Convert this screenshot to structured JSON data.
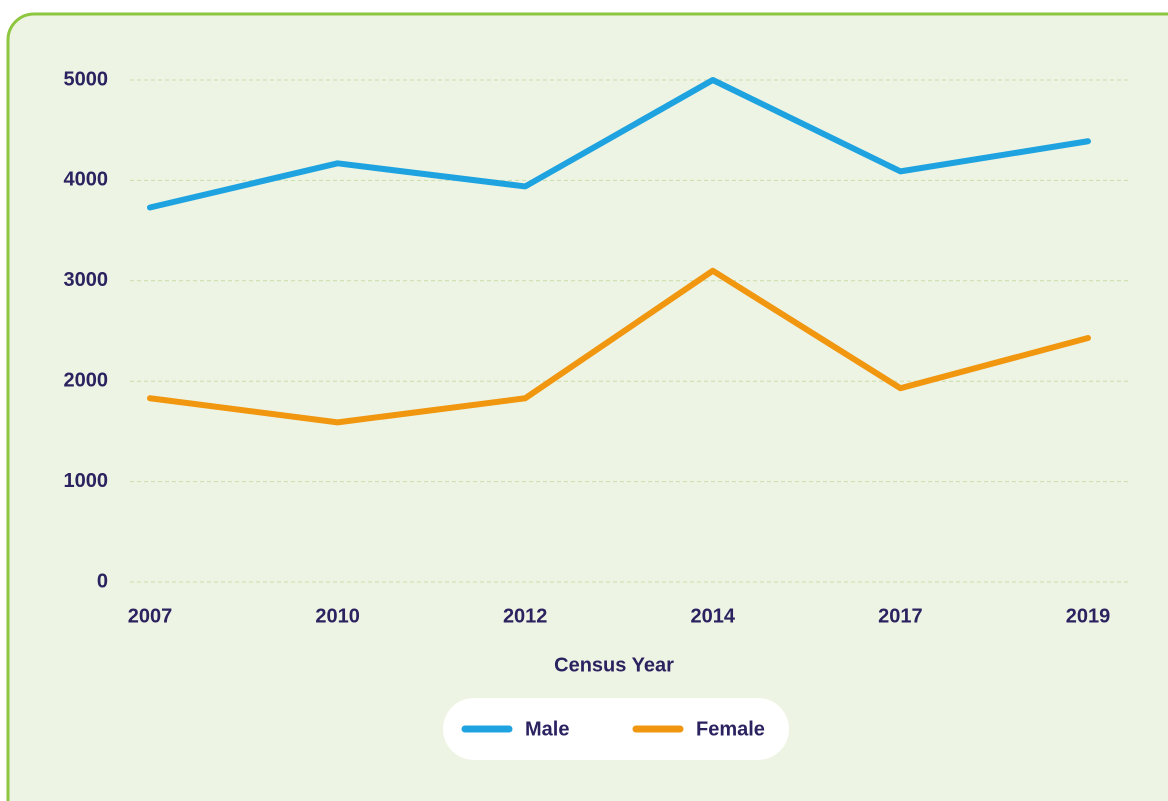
{
  "chart_data": {
    "type": "line",
    "categories": [
      "2007",
      "2010",
      "2012",
      "2014",
      "2017",
      "2019"
    ],
    "x_label": "Census Year",
    "series": [
      {
        "name": "Male",
        "color": "#1ea3e0",
        "values": [
          3730,
          4170,
          3940,
          5000,
          4090,
          4390
        ]
      },
      {
        "name": "Female",
        "color": "#f0960f",
        "values": [
          1830,
          1590,
          1830,
          3100,
          1930,
          2430
        ]
      }
    ],
    "ylim": [
      0,
      5000
    ],
    "yticks": [
      0,
      1000,
      2000,
      3000,
      4000,
      5000
    ],
    "grid": true
  }
}
